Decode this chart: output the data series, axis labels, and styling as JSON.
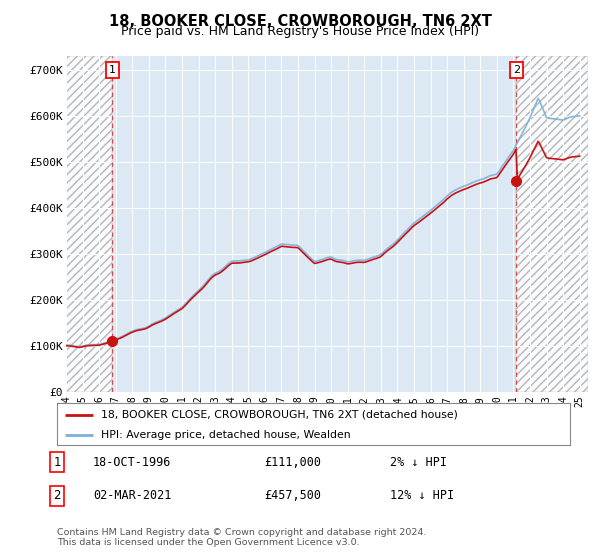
{
  "title": "18, BOOKER CLOSE, CROWBOROUGH, TN6 2XT",
  "subtitle": "Price paid vs. HM Land Registry's House Price Index (HPI)",
  "ylim": [
    0,
    730000
  ],
  "yticks": [
    0,
    100000,
    200000,
    300000,
    400000,
    500000,
    600000,
    700000
  ],
  "ytick_labels": [
    "£0",
    "£100K",
    "£200K",
    "£300K",
    "£400K",
    "£500K",
    "£600K",
    "£700K"
  ],
  "background_color": "#ffffff",
  "plot_bg_color": "#dde8f5",
  "hpi_color": "#7ab0d8",
  "price_color": "#cc1111",
  "point1_year": 1996.8,
  "point1_price": 111000,
  "point2_year": 2021.17,
  "point2_price": 457500,
  "legend_line1": "18, BOOKER CLOSE, CROWBOROUGH, TN6 2XT (detached house)",
  "legend_line2": "HPI: Average price, detached house, Wealden",
  "footer": "Contains HM Land Registry data © Crown copyright and database right 2024.\nThis data is licensed under the Open Government Licence v3.0.",
  "hpi_anchor_values": {
    "1994.0": 95000,
    "1995.0": 98000,
    "1996.0": 100000,
    "1997.0": 112000,
    "1998.0": 125000,
    "1999.0": 140000,
    "2000.0": 158000,
    "2001.0": 180000,
    "2002.0": 215000,
    "2003.0": 250000,
    "2004.0": 275000,
    "2005.0": 280000,
    "2006.0": 295000,
    "2007.0": 315000,
    "2008.0": 310000,
    "2009.0": 275000,
    "2010.0": 285000,
    "2011.0": 275000,
    "2012.0": 278000,
    "2013.0": 290000,
    "2014.0": 320000,
    "2015.0": 355000,
    "2016.0": 385000,
    "2017.0": 415000,
    "2018.0": 435000,
    "2019.0": 450000,
    "2020.0": 460000,
    "2021.0": 510000,
    "2022.0": 580000,
    "2022.5": 620000,
    "2023.0": 580000,
    "2024.0": 575000,
    "2025.0": 585000
  }
}
